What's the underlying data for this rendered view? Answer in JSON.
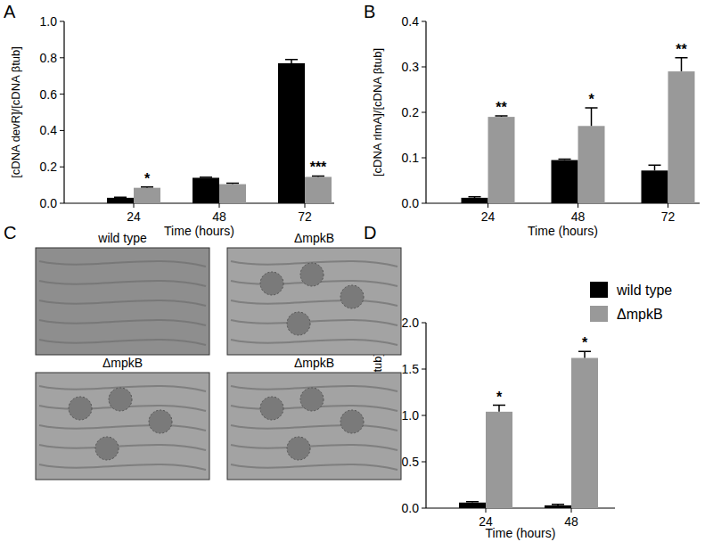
{
  "chart_data": [
    {
      "type": "bar",
      "title": "A",
      "x_label": "Time (hours)",
      "y_label": "[cDNA devR]/[cDNA βtub]",
      "categories": [
        "24",
        "48",
        "72"
      ],
      "series": [
        {
          "color": "#000000",
          "values": [
            0.03,
            0.14,
            0.77
          ],
          "errors": [
            0.003,
            0.003,
            0.02
          ]
        },
        {
          "color": "#999999",
          "values": [
            0.085,
            0.105,
            0.145
          ],
          "errors": [
            0.005,
            0.005,
            0.005
          ]
        }
      ],
      "significance": [
        "*",
        null,
        "***"
      ],
      "ylim": [
        0,
        1.0
      ],
      "yticks": [
        {
          "value": 0,
          "label": "0.0"
        },
        0.2,
        0.4,
        0.6,
        0.8,
        {
          "value": 1.0,
          "label": "1.0"
        }
      ],
      "grid": false
    },
    {
      "type": "bar",
      "title": "B",
      "x_label": "Time (hours)",
      "y_label": "[cDNA rlmA]/[cDNA βtub]",
      "categories": [
        "24",
        "48",
        "72"
      ],
      "series": [
        {
          "color": "#000000",
          "values": [
            0.012,
            0.095,
            0.072
          ],
          "errors": [
            0.002,
            0.002,
            0.012
          ]
        },
        {
          "color": "#999999",
          "values": [
            0.19,
            0.17,
            0.29
          ],
          "errors": [
            0.002,
            0.04,
            0.03
          ]
        }
      ],
      "significance": [
        "**",
        "*",
        "**"
      ],
      "ylim": [
        0,
        0.4
      ],
      "yticks": [
        {
          "value": 0,
          "label": "0.0"
        },
        0.1,
        0.2,
        0.3,
        0.4
      ],
      "grid": false
    },
    {
      "type": "bar",
      "title": "D",
      "x_label": "Time (hours)",
      "y_label": "[cDNA brlA]/[cDNA βtub]",
      "categories": [
        "24",
        "48"
      ],
      "series": [
        {
          "name": "wild type",
          "color": "#000000",
          "values": [
            0.06,
            0.03
          ],
          "errors": [
            0.01,
            0.01
          ]
        },
        {
          "name": "ΔmpkB",
          "color": "#999999",
          "values": [
            1.04,
            1.62
          ],
          "errors": [
            0.07,
            0.07
          ]
        }
      ],
      "significance": [
        "*",
        "*"
      ],
      "ylim": [
        0,
        2.0
      ],
      "yticks": [
        {
          "value": 0,
          "label": "0.0"
        },
        0.5,
        {
          "value": 1.0,
          "label": "1.0"
        },
        1.5,
        {
          "value": 2.0,
          "label": "2.0"
        }
      ],
      "grid": false,
      "legend": "right"
    }
  ],
  "panel_c": {
    "label": "C",
    "images": [
      {
        "caption": "wild type"
      },
      {
        "caption": "ΔmpkB"
      },
      {
        "caption": "ΔmpkB"
      },
      {
        "caption": "ΔmpkB"
      }
    ]
  }
}
